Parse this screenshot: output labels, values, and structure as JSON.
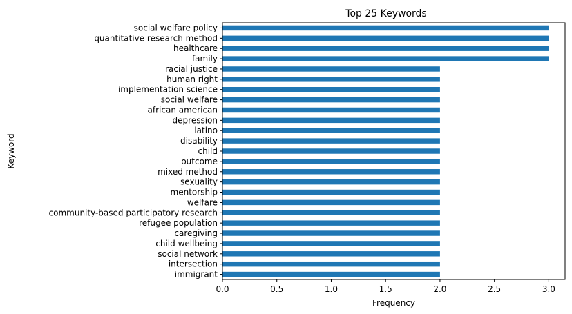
{
  "chart_data": {
    "type": "bar",
    "orientation": "horizontal",
    "title": "Top 25 Keywords",
    "xlabel": "Frequency",
    "ylabel": "Keyword",
    "xlim": [
      0,
      3.15
    ],
    "xticks": [
      "0.0",
      "0.5",
      "1.0",
      "1.5",
      "2.0",
      "2.5",
      "3.0"
    ],
    "grid": false,
    "bar_color": "#1f77b4",
    "categories": [
      "social welfare policy",
      "quantitative research method",
      "healthcare",
      "family",
      "racial justice",
      "human right",
      "implementation science",
      "social welfare",
      "african american",
      "depression",
      "latino",
      "disability",
      "child",
      "outcome",
      "mixed method",
      "sexuality",
      "mentorship",
      "welfare",
      "community-based participatory research",
      "refugee population",
      "caregiving",
      "child wellbeing",
      "social network",
      "intersection",
      "immigrant"
    ],
    "values": [
      3,
      3,
      3,
      3,
      2,
      2,
      2,
      2,
      2,
      2,
      2,
      2,
      2,
      2,
      2,
      2,
      2,
      2,
      2,
      2,
      2,
      2,
      2,
      2,
      2
    ]
  }
}
